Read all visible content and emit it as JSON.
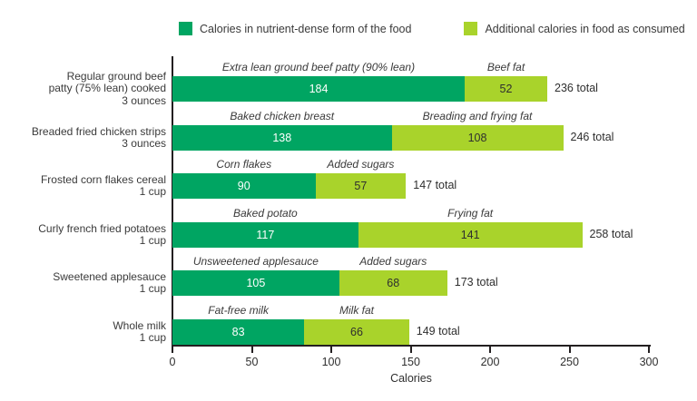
{
  "legend": [
    {
      "label": "Calories in nutrient-dense form of the food",
      "color": "#00a562"
    },
    {
      "label": "Additional calories in food as consumed",
      "color": "#a9d32b"
    }
  ],
  "colors": {
    "dark_green": "#00a562",
    "light_green": "#a9d32b",
    "axis": "#231f20",
    "text_dark": "#2f2f2f",
    "value_on_dark": "#ffffff"
  },
  "chart_data": {
    "type": "bar",
    "orientation": "horizontal",
    "stacked": true,
    "title": "",
    "xlabel": "Calories",
    "xlim": [
      0,
      300
    ],
    "xticks": [
      0,
      50,
      100,
      150,
      200,
      250,
      300
    ],
    "grid": false,
    "legend_position": "top",
    "series_names": [
      "Calories in nutrient-dense form of the food",
      "Additional calories in food as consumed"
    ],
    "rows": [
      {
        "category": "Regular ground beef patty (75% lean) cooked 3 ounces",
        "category_lines": [
          "Regular ground beef",
          "patty (75% lean) cooked",
          "3 ounces"
        ],
        "segments": [
          {
            "label": "Extra lean ground beef patty (90% lean)",
            "value": 184
          },
          {
            "label": "Beef fat",
            "value": 52
          }
        ],
        "total": 236,
        "total_label": "236 total"
      },
      {
        "category": "Breaded fried chicken strips 3 ounces",
        "category_lines": [
          "Breaded fried chicken strips",
          "3 ounces"
        ],
        "segments": [
          {
            "label": "Baked chicken breast",
            "value": 138
          },
          {
            "label": "Breading and frying fat",
            "value": 108
          }
        ],
        "total": 246,
        "total_label": "246 total"
      },
      {
        "category": "Frosted corn flakes cereal 1 cup",
        "category_lines": [
          "Frosted corn flakes cereal",
          "1 cup"
        ],
        "segments": [
          {
            "label": "Corn flakes",
            "value": 90
          },
          {
            "label": "Added sugars",
            "value": 57
          }
        ],
        "total": 147,
        "total_label": "147 total"
      },
      {
        "category": "Curly french fried potatoes 1 cup",
        "category_lines": [
          "Curly french fried potatoes",
          "1 cup"
        ],
        "segments": [
          {
            "label": "Baked potato",
            "value": 117
          },
          {
            "label": "Frying fat",
            "value": 141
          }
        ],
        "total": 258,
        "total_label": "258 total"
      },
      {
        "category": "Sweetened applesauce 1 cup",
        "category_lines": [
          "Sweetened applesauce",
          "1 cup"
        ],
        "segments": [
          {
            "label": "Unsweetened applesauce",
            "value": 105
          },
          {
            "label": "Added sugars",
            "value": 68
          }
        ],
        "total": 173,
        "total_label": "173 total"
      },
      {
        "category": "Whole milk 1 cup",
        "category_lines": [
          "Whole milk",
          "1 cup"
        ],
        "segments": [
          {
            "label": "Fat-free milk",
            "value": 83
          },
          {
            "label": "Milk fat",
            "value": 66
          }
        ],
        "total": 149,
        "total_label": "149 total"
      }
    ]
  }
}
